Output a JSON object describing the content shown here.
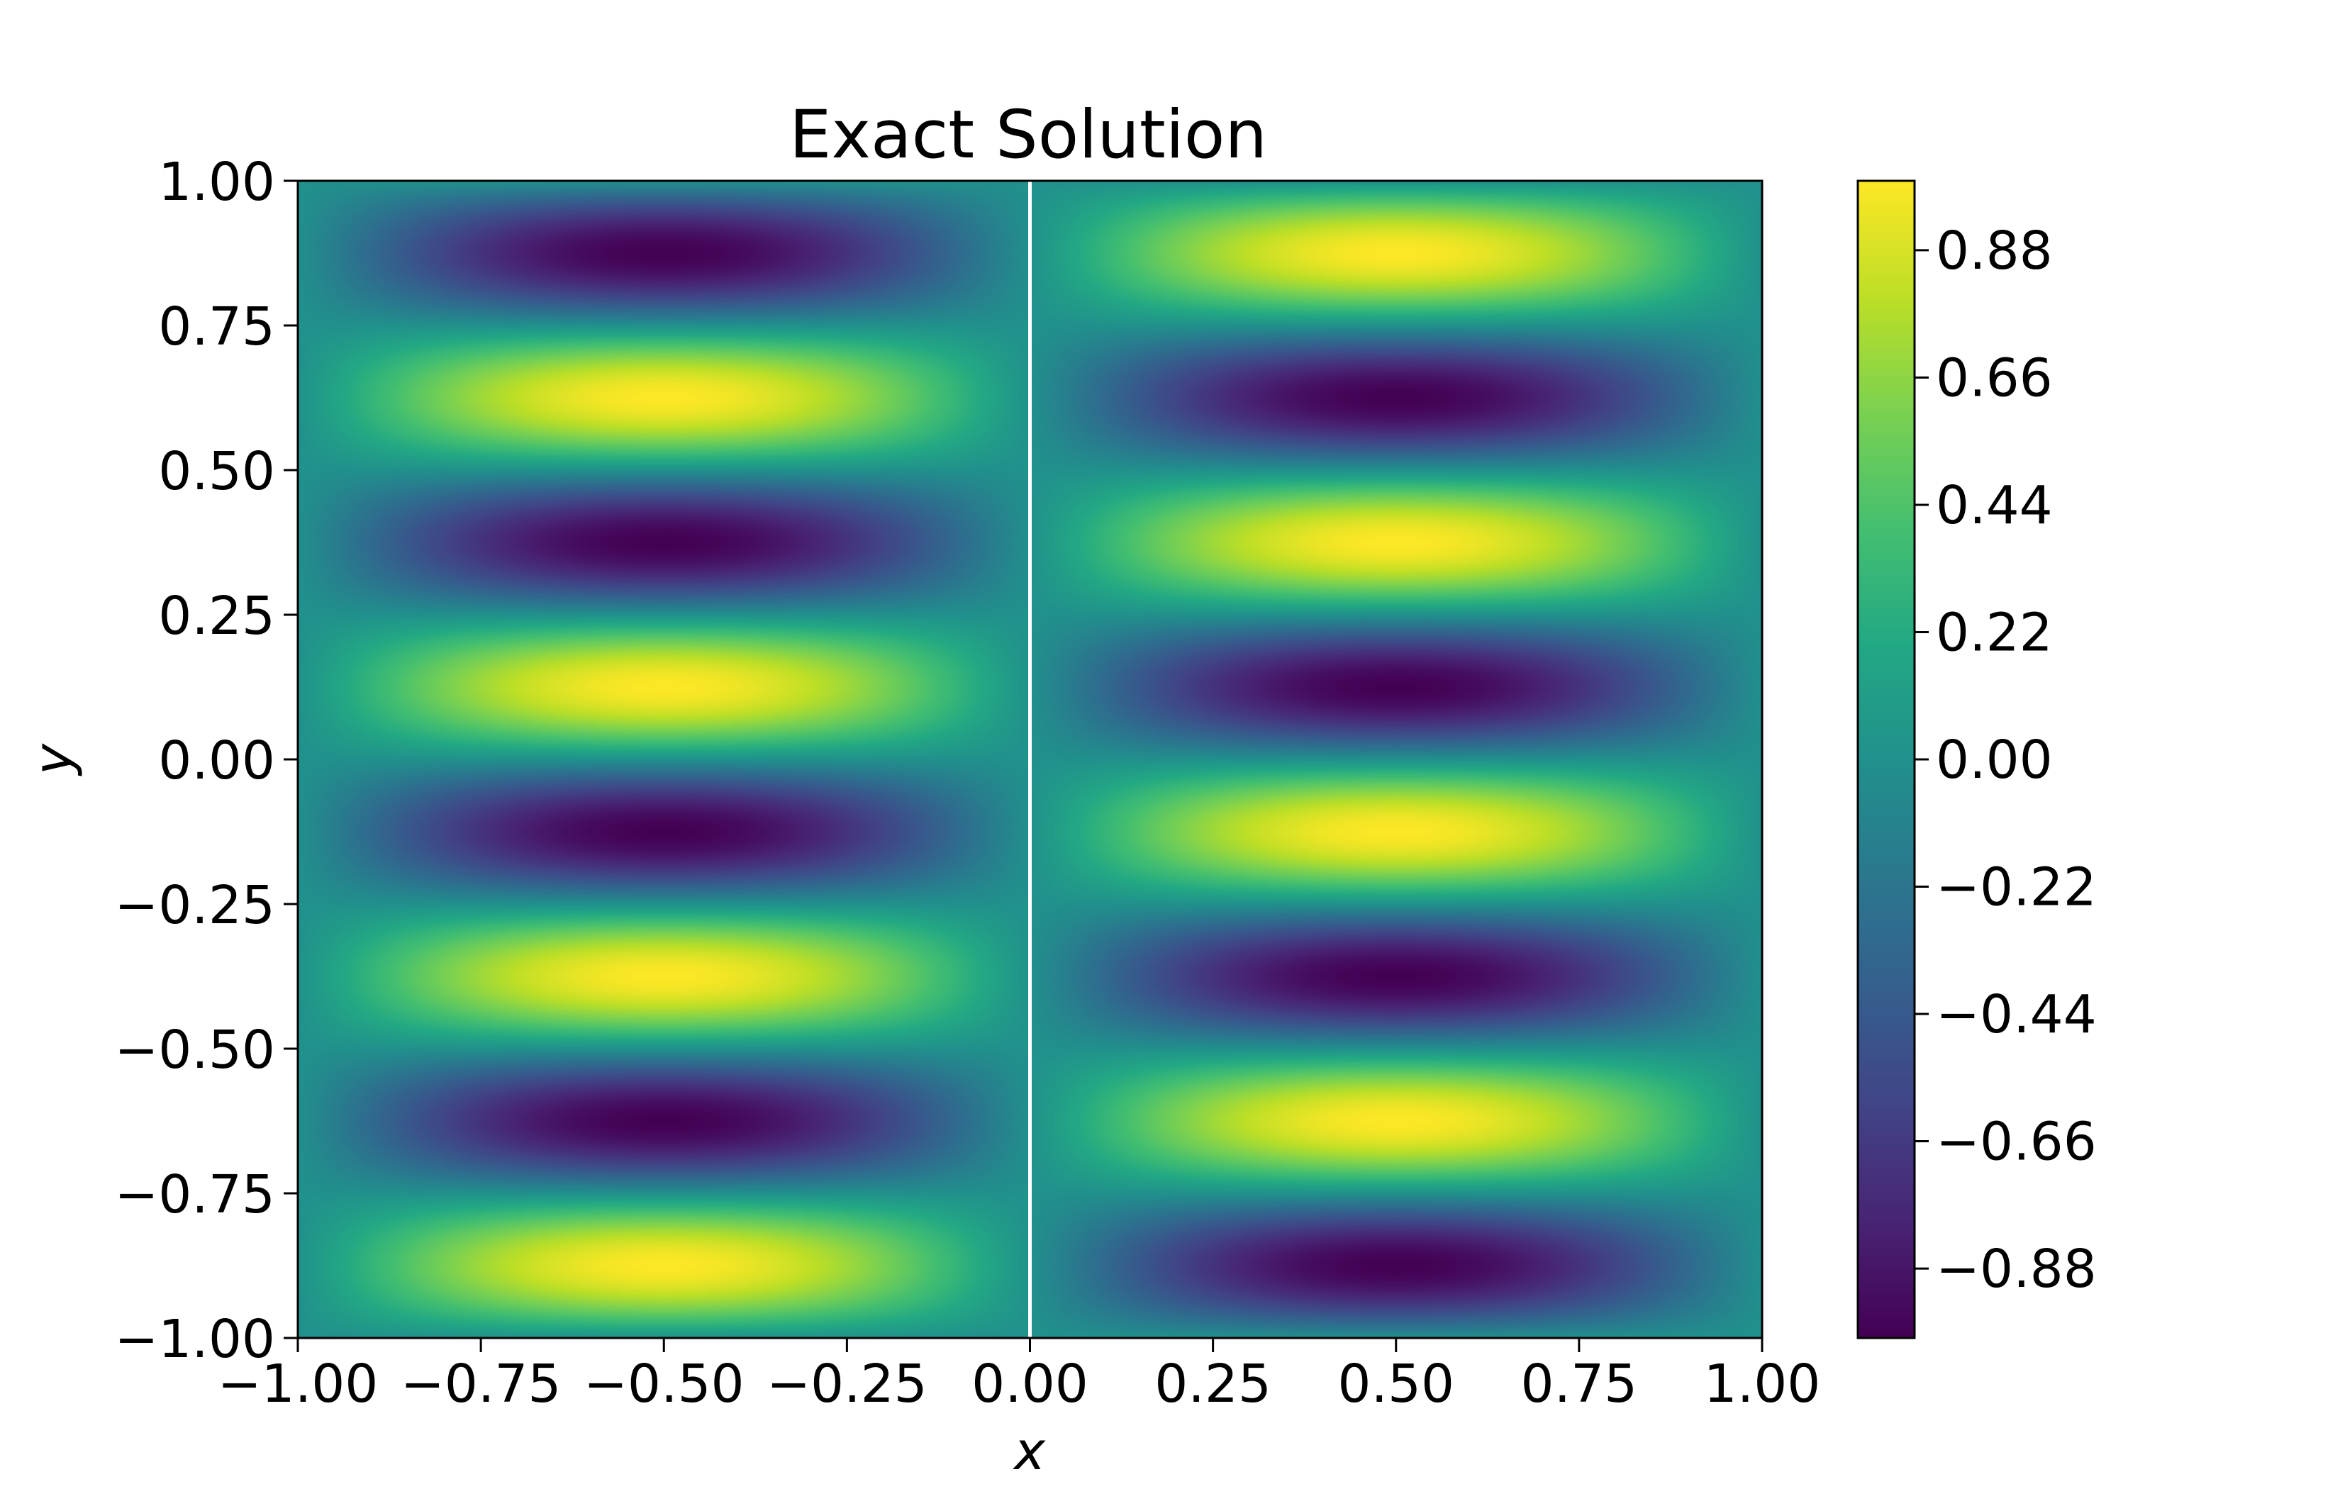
{
  "chart_data": {
    "type": "heatmap",
    "title": "Exact Solution",
    "xlabel": "x",
    "ylabel": "y",
    "xlim": [
      -1.0,
      1.0
    ],
    "ylim": [
      -1.0,
      1.0
    ],
    "x_ticks": [
      -1.0,
      -0.75,
      -0.5,
      -0.25,
      0.0,
      0.25,
      0.5,
      0.75,
      1.0
    ],
    "x_tick_labels": [
      "−1.00",
      "−0.75",
      "−0.50",
      "−0.25",
      "0.00",
      "0.25",
      "0.50",
      "0.75",
      "1.00"
    ],
    "y_ticks": [
      1.0,
      0.75,
      0.5,
      0.25,
      0.0,
      -0.25,
      -0.5,
      -0.75,
      -1.0
    ],
    "y_tick_labels": [
      "1.00",
      "0.75",
      "0.50",
      "0.25",
      "0.00",
      "−0.25",
      "−0.50",
      "−0.75",
      "−1.00"
    ],
    "colormap": "viridis",
    "colorbar": {
      "vmin": -1.0,
      "vmax": 1.0,
      "ticks": [
        0.88,
        0.66,
        0.44,
        0.22,
        0.0,
        -0.22,
        -0.44,
        -0.66,
        -0.88
      ],
      "tick_labels": [
        "0.88",
        "0.66",
        "0.44",
        "0.22",
        "0.00",
        "−0.22",
        "−0.44",
        "−0.66",
        "−0.88"
      ]
    },
    "field": {
      "description_of_pattern": "u(x,y) = -sin(pi*x) * sin(4*pi*y)",
      "x_amplitude_factor": -1,
      "x_frequency": 1,
      "y_frequency": 4
    },
    "vertical_line_x": 0.0,
    "grid": false
  }
}
